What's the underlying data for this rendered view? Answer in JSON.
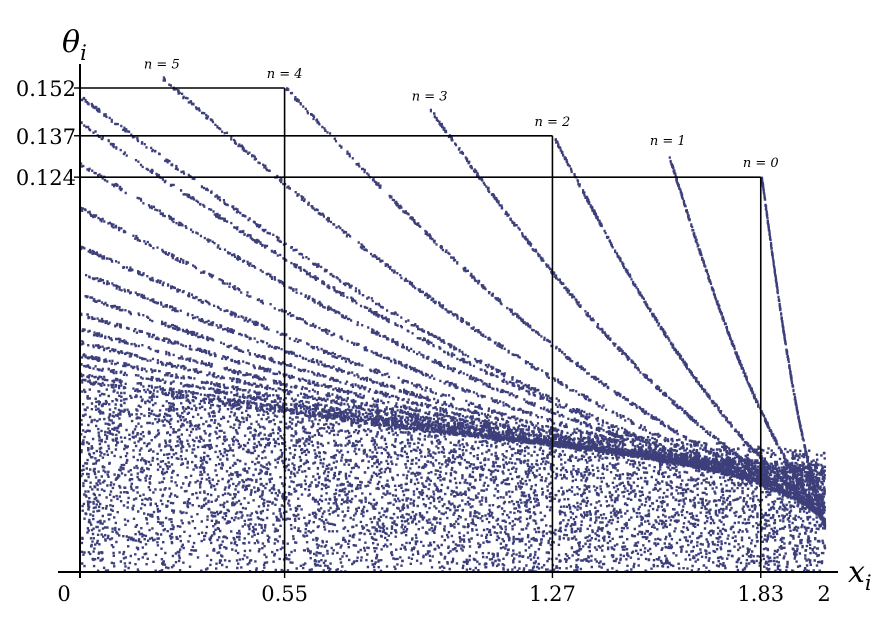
{
  "chart_data": {
    "type": "scatter",
    "title": "",
    "xlabel": "x",
    "xlabel_sub": "i",
    "ylabel": "θ",
    "ylabel_sub": "i",
    "xlim": [
      0,
      2
    ],
    "ylim": [
      0,
      0.152
    ],
    "grid": false,
    "legend": "none",
    "point_color": "#3d3f7a",
    "x_ticks": [
      {
        "value": 0,
        "label": "0"
      },
      {
        "value": 0.55,
        "label": "0.55"
      },
      {
        "value": 1.27,
        "label": "1.27"
      },
      {
        "value": 1.83,
        "label": "1.83"
      },
      {
        "value": 2,
        "label": "2"
      }
    ],
    "y_ticks": [
      {
        "value": 0.152,
        "label": "0.152"
      },
      {
        "value": 0.137,
        "label": "0.137"
      },
      {
        "value": 0.124,
        "label": "0.124"
      }
    ],
    "guide_lines": [
      {
        "x": 0.55,
        "y": 0.152
      },
      {
        "x": 1.27,
        "y": 0.137
      },
      {
        "x": 1.83,
        "y": 0.124
      }
    ],
    "branches": [
      {
        "label": "n = 0",
        "x_start": 1.83,
        "y_start": 0.124,
        "x_end": 2,
        "y_end": 0.014
      },
      {
        "label": "n = 1",
        "x_start": 1.58,
        "y_start": 0.131,
        "x_end": 2,
        "y_end": 0.015
      },
      {
        "label": "n = 2",
        "x_start": 1.27,
        "y_start": 0.137,
        "x_end": 2,
        "y_end": 0.016
      },
      {
        "label": "n = 3",
        "x_start": 0.94,
        "y_start": 0.145,
        "x_end": 2,
        "y_end": 0.017
      },
      {
        "label": "n = 4",
        "x_start": 0.55,
        "y_start": 0.152,
        "x_end": 2,
        "y_end": 0.018
      },
      {
        "label": "n = 5",
        "x_start": 0.22,
        "y_start": 0.155,
        "x_end": 2,
        "y_end": 0.019
      },
      {
        "label": "",
        "x_start": 0,
        "y_start": 0.149,
        "x_end": 2,
        "y_end": 0.02
      },
      {
        "label": "",
        "x_start": 0,
        "y_start": 0.141,
        "x_end": 2,
        "y_end": 0.021
      },
      {
        "label": "",
        "x_start": 0,
        "y_start": 0.128,
        "x_end": 2,
        "y_end": 0.022
      },
      {
        "label": "",
        "x_start": 0,
        "y_start": 0.114,
        "x_end": 2,
        "y_end": 0.023
      },
      {
        "label": "",
        "x_start": 0,
        "y_start": 0.102,
        "x_end": 2,
        "y_end": 0.024
      },
      {
        "label": "",
        "x_start": 0,
        "y_start": 0.094,
        "x_end": 2,
        "y_end": 0.025
      },
      {
        "label": "",
        "x_start": 0,
        "y_start": 0.087,
        "x_end": 2,
        "y_end": 0.026
      },
      {
        "label": "",
        "x_start": 0,
        "y_start": 0.081,
        "x_end": 2,
        "y_end": 0.027
      },
      {
        "label": "",
        "x_start": 0,
        "y_start": 0.076,
        "x_end": 2,
        "y_end": 0.028
      },
      {
        "label": "",
        "x_start": 0,
        "y_start": 0.072,
        "x_end": 2,
        "y_end": 0.029
      },
      {
        "label": "",
        "x_start": 0,
        "y_start": 0.068,
        "x_end": 2,
        "y_end": 0.03
      },
      {
        "label": "",
        "x_start": 0,
        "y_start": 0.065,
        "x_end": 2,
        "y_end": 0.031
      },
      {
        "label": "",
        "x_start": 0,
        "y_start": 0.062,
        "x_end": 2,
        "y_end": 0.032
      },
      {
        "label": "",
        "x_start": 0,
        "y_start": 0.06,
        "x_end": 2,
        "y_end": 0.033
      }
    ],
    "dense_region": {
      "x_range": [
        0,
        2
      ],
      "y_range": [
        0,
        0.058
      ]
    }
  }
}
